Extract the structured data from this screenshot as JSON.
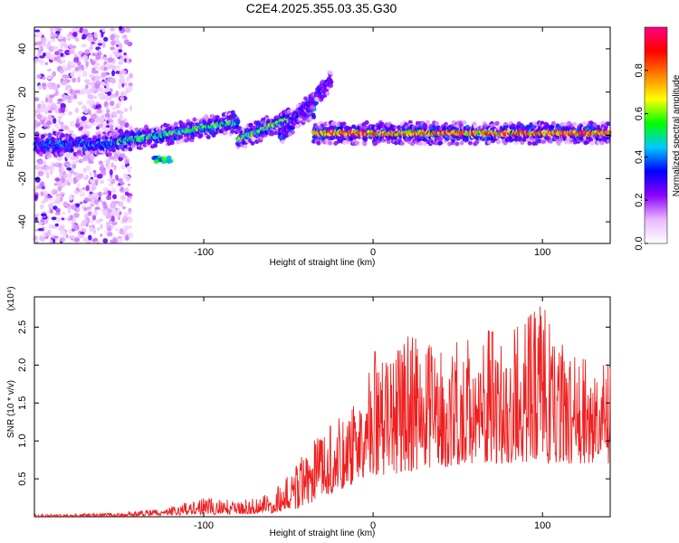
{
  "title": "C2E4.2025.355.03.35.G30",
  "chart_data": [
    {
      "type": "heatmap",
      "name": "spectrogram",
      "xlabel": "Height of straight line (km)",
      "ylabel": "Frequency (Hz)",
      "xlim": [
        -200,
        140
      ],
      "ylim": [
        -50,
        50
      ],
      "xticks": [
        -100,
        0,
        100
      ],
      "yticks": [
        -40,
        -20,
        0,
        20,
        40
      ],
      "xtick_labels": [
        "-100",
        "0",
        "100"
      ],
      "ytick_labels": [
        "-40",
        "-20",
        "0",
        "20",
        "40"
      ],
      "colorbar": {
        "label": "Normalized spectral amplitude",
        "range": [
          0,
          1
        ],
        "ticks": [
          0.0,
          0.2,
          0.4,
          0.6,
          0.8
        ],
        "tick_labels": [
          "0.0",
          "0.2",
          "0.4",
          "0.6",
          "0.8"
        ],
        "colors": [
          "#ffffff",
          "#e8b8ff",
          "#8b00ff",
          "#0000ff",
          "#00c8ff",
          "#00ff00",
          "#ffff00",
          "#ff8000",
          "#ff0000",
          "#ff0080"
        ]
      },
      "features": [
        {
          "kind": "noise",
          "x": [
            -200,
            -143
          ],
          "y": [
            -50,
            50
          ],
          "level": 0.25
        },
        {
          "kind": "ridge",
          "x": [
            -200,
            -150
          ],
          "freq": [
            -4,
            -4
          ],
          "level": 0.4
        },
        {
          "kind": "ridge",
          "x": [
            -150,
            -80
          ],
          "freq": [
            -3,
            6
          ],
          "level": 0.55
        },
        {
          "kind": "ridge",
          "x": [
            -80,
            -35
          ],
          "freq": [
            -2,
            12
          ],
          "level": 0.65
        },
        {
          "kind": "ridge",
          "x": [
            -55,
            -25
          ],
          "freq": [
            0,
            25
          ],
          "level": 0.3
        },
        {
          "kind": "blob",
          "x": [
            -130,
            -118
          ],
          "freq": [
            -11,
            -11
          ],
          "level": 0.55
        },
        {
          "kind": "ridge",
          "x": [
            -35,
            140
          ],
          "freq": [
            1,
            1
          ],
          "level": 0.9
        }
      ]
    },
    {
      "type": "line",
      "name": "snr",
      "xlabel": "Height of straight line (km)",
      "ylabel": "SNR (10 * v/v)",
      "scale_note": "(x10⁴)",
      "xlim": [
        -200,
        140
      ],
      "ylim": [
        0,
        2.9
      ],
      "xticks": [
        -100,
        0,
        100
      ],
      "yticks": [
        0.5,
        1.0,
        1.5,
        2.0,
        2.5
      ],
      "xtick_labels": [
        "-100",
        "0",
        "100"
      ],
      "ytick_labels": [
        "0.5",
        "1.0",
        "1.5",
        "2.0",
        "2.5"
      ],
      "color": "#ee2020",
      "envelope": {
        "x": [
          -200,
          -150,
          -120,
          -100,
          -80,
          -60,
          -45,
          -35,
          -25,
          -15,
          -5,
          0,
          10,
          20,
          40,
          60,
          80,
          100,
          120,
          140
        ],
        "low": [
          0.0,
          0.0,
          0.02,
          0.03,
          0.03,
          0.05,
          0.1,
          0.2,
          0.3,
          0.4,
          0.5,
          0.55,
          0.55,
          0.6,
          0.65,
          0.7,
          0.7,
          0.7,
          0.7,
          0.7
        ],
        "high": [
          0.03,
          0.05,
          0.12,
          0.25,
          0.22,
          0.3,
          0.7,
          1.0,
          1.2,
          1.4,
          1.7,
          2.2,
          2.0,
          2.4,
          2.2,
          2.5,
          2.4,
          2.8,
          2.1,
          2.0
        ]
      }
    }
  ]
}
